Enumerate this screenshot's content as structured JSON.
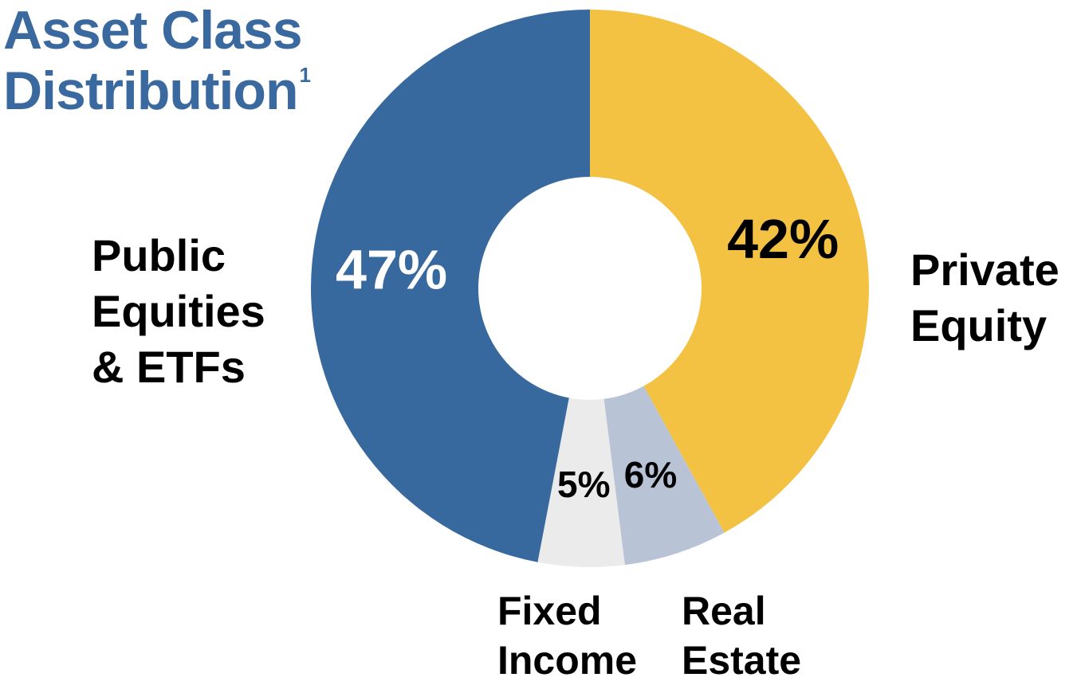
{
  "chart_data": {
    "type": "pie",
    "title_lines": [
      "Asset Class",
      "Distribution"
    ],
    "title_superscript": "1",
    "categories": [
      "Private Equity",
      "Real Estate",
      "Fixed Income",
      "Public Equities & ETFs"
    ],
    "values": [
      42,
      6,
      5,
      47
    ],
    "value_labels": [
      "42%",
      "6%",
      "5%",
      "47%"
    ],
    "category_label_lines": [
      [
        "Private",
        "Equity"
      ],
      [
        "Real",
        "Estate"
      ],
      [
        "Fixed",
        "Income"
      ],
      [
        "Public",
        "Equities",
        "& ETFs"
      ]
    ],
    "colors": [
      "#f4c242",
      "#b8c3d6",
      "#ebebeb",
      "#38699e"
    ],
    "value_label_colors": [
      "#000000",
      "#000000",
      "#000000",
      "#ffffff"
    ],
    "donut": true,
    "start_angle": "12 o'clock",
    "direction": "clockwise"
  }
}
